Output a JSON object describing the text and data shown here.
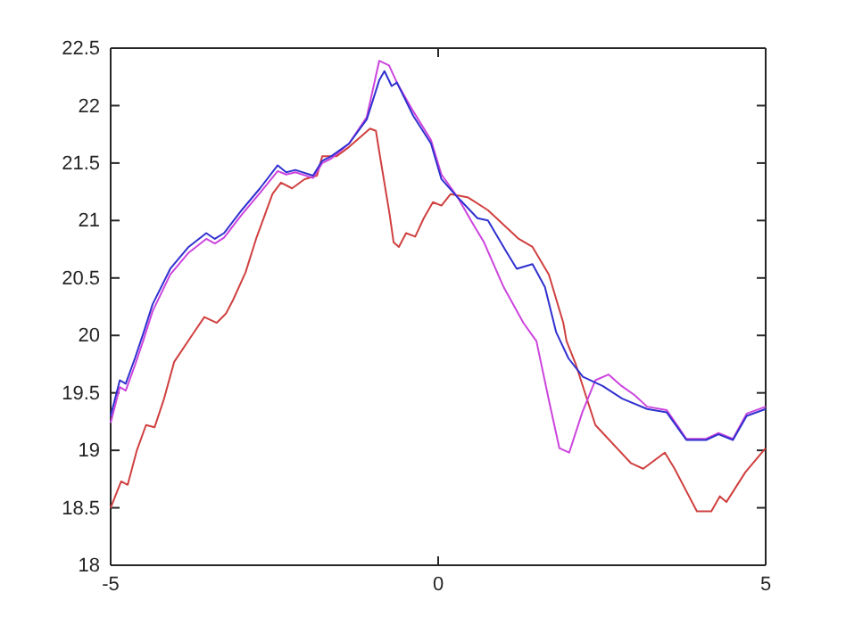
{
  "chart_data": {
    "type": "line",
    "xlim": [
      -5,
      5
    ],
    "xticks": [
      -5,
      0,
      5
    ],
    "ylim": [
      18,
      22.5
    ],
    "yticks": [
      18,
      18.5,
      19,
      19.5,
      20,
      20.5,
      21,
      21.5,
      22,
      22.5
    ],
    "grid": false,
    "line_style": "solid",
    "marker": "none",
    "series": [
      {
        "color": "#d04040",
        "x": [
          -5,
          -4.84,
          -4.74,
          -4.6,
          -4.46,
          -4.33,
          -4.19,
          -4.03,
          -3.76,
          -3.57,
          -3.38,
          -3.24,
          -3.13,
          -2.94,
          -2.78,
          -2.53,
          -2.4,
          -2.23,
          -2.04,
          -1.85,
          -1.77,
          -1.55,
          -1.36,
          -1.04,
          -0.95,
          -0.9,
          -0.74,
          -0.68,
          -0.6,
          -0.49,
          -0.35,
          -0.22,
          -0.08,
          0.05,
          0.19,
          0.46,
          0.76,
          1.23,
          1.44,
          1.69,
          1.91,
          1.96,
          2.1,
          2.4,
          2.94,
          3.13,
          3.46,
          3.6,
          3.95,
          4.17,
          4.3,
          4.4,
          4.69,
          5
        ],
        "values": [
          18.5,
          18.73,
          18.7,
          19.0,
          19.22,
          19.2,
          19.44,
          19.77,
          20.0,
          20.16,
          20.11,
          20.19,
          20.31,
          20.55,
          20.84,
          21.23,
          21.33,
          21.28,
          21.36,
          21.39,
          21.56,
          21.56,
          21.64,
          21.8,
          21.78,
          21.6,
          21.05,
          20.81,
          20.77,
          20.89,
          20.86,
          21.02,
          21.16,
          21.13,
          21.23,
          21.2,
          21.09,
          20.84,
          20.77,
          20.53,
          20.11,
          19.95,
          19.75,
          19.22,
          18.89,
          18.84,
          18.98,
          18.85,
          18.47,
          18.47,
          18.6,
          18.55,
          18.81,
          19.02
        ]
      },
      {
        "color": "#cc44dd",
        "x": [
          -5,
          -4.86,
          -4.77,
          -4.63,
          -4.5,
          -4.36,
          -4.09,
          -3.81,
          -3.54,
          -3.41,
          -3.27,
          -3,
          -2.72,
          -2.45,
          -2.32,
          -2.18,
          -1.91,
          -1.77,
          -1.63,
          -1.36,
          -1.09,
          -0.9,
          -0.75,
          -0.63,
          -0.38,
          -0.11,
          0.05,
          0.3,
          0.5,
          0.7,
          1.0,
          1.3,
          1.5,
          1.7,
          1.85,
          2.0,
          2.2,
          2.4,
          2.6,
          2.8,
          3.0,
          3.19,
          3.49,
          3.79,
          4.09,
          4.28,
          4.5,
          4.71,
          5
        ],
        "values": [
          19.24,
          19.55,
          19.52,
          19.74,
          19.96,
          20.21,
          20.53,
          20.72,
          20.84,
          20.8,
          20.85,
          21.05,
          21.24,
          21.43,
          21.4,
          21.42,
          21.37,
          21.5,
          21.54,
          21.67,
          21.9,
          22.39,
          22.35,
          22.2,
          21.95,
          21.7,
          21.4,
          21.2,
          21.0,
          20.81,
          20.42,
          20.11,
          19.95,
          19.41,
          19.02,
          18.98,
          19.33,
          19.61,
          19.66,
          19.56,
          19.48,
          19.38,
          19.35,
          19.1,
          19.1,
          19.15,
          19.1,
          19.32,
          19.38
        ]
      },
      {
        "color": "#3030d0",
        "x": [
          -5,
          -4.86,
          -4.77,
          -4.63,
          -4.5,
          -4.36,
          -4.09,
          -3.81,
          -3.54,
          -3.41,
          -3.27,
          -3,
          -2.72,
          -2.45,
          -2.32,
          -2.18,
          -1.91,
          -1.77,
          -1.63,
          -1.36,
          -1.09,
          -0.9,
          -0.82,
          -0.71,
          -0.63,
          -0.38,
          -0.11,
          0.05,
          0.3,
          0.6,
          0.76,
          1.04,
          1.2,
          1.44,
          1.63,
          1.8,
          1.99,
          2.21,
          2.51,
          2.81,
          3.19,
          3.49,
          3.79,
          4.09,
          4.28,
          4.5,
          4.71,
          5
        ],
        "values": [
          19.3,
          19.61,
          19.58,
          19.8,
          20.02,
          20.27,
          20.58,
          20.77,
          20.89,
          20.84,
          20.89,
          21.09,
          21.28,
          21.48,
          21.42,
          21.44,
          21.39,
          21.52,
          21.56,
          21.67,
          21.88,
          22.22,
          22.3,
          22.17,
          22.2,
          21.91,
          21.67,
          21.36,
          21.2,
          21.02,
          21.0,
          20.73,
          20.58,
          20.62,
          20.42,
          20.03,
          19.8,
          19.64,
          19.56,
          19.45,
          19.36,
          19.33,
          19.09,
          19.09,
          19.14,
          19.09,
          19.3,
          19.36
        ]
      }
    ]
  }
}
